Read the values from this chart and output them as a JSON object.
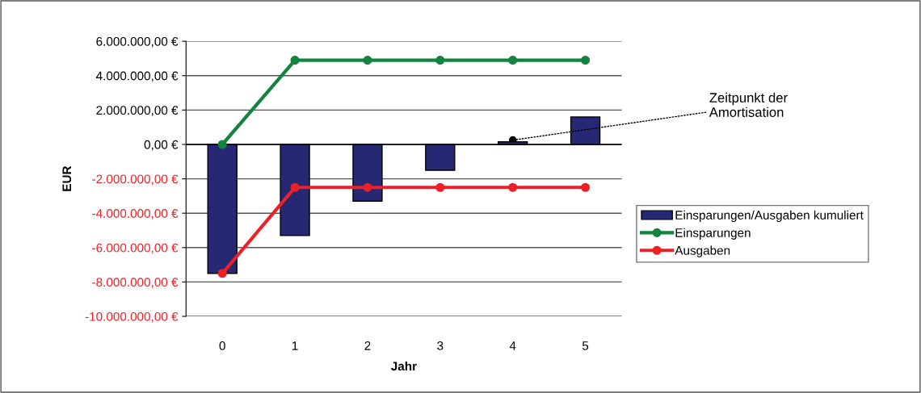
{
  "chart_data": {
    "type": "bar",
    "xlabel": "Jahr",
    "ylabel": "EUR",
    "categories": [
      "0",
      "1",
      "2",
      "3",
      "4",
      "5"
    ],
    "series": [
      {
        "name": "Einsparungen/Ausgaben kumuliert",
        "color": "#262873",
        "values": [
          -7500000,
          -5300000,
          -3300000,
          -1500000,
          150000,
          1600000
        ]
      },
      {
        "name": "Einsparungen",
        "type": "line",
        "color": "#13833f",
        "values": [
          0,
          4900000,
          4900000,
          4900000,
          4900000,
          4900000
        ]
      },
      {
        "name": "Ausgaben",
        "type": "line",
        "color": "#ec2027",
        "values": [
          -7500000,
          -2500000,
          -2500000,
          -2500000,
          -2500000,
          -2500000
        ]
      }
    ],
    "ylim": [
      -10000000,
      6000000
    ],
    "yticks": [
      {
        "value": -10000000,
        "label": "-10.000.000,00 €"
      },
      {
        "value": -8000000,
        "label": "-8.000.000,00 €"
      },
      {
        "value": -6000000,
        "label": "-6.000.000,00 €"
      },
      {
        "value": -4000000,
        "label": "-4.000.000,00 €"
      },
      {
        "value": -2000000,
        "label": "-2.000.000,00 €"
      },
      {
        "value": 0,
        "label": "0,00 €"
      },
      {
        "value": 2000000,
        "label": "2.000.000,00 €"
      },
      {
        "value": 4000000,
        "label": "4.000.000,00 €"
      },
      {
        "value": 6000000,
        "label": "6.000.000,00 €"
      }
    ],
    "annotations": [
      {
        "text": "Zeitpunkt der\nAmortisation",
        "x": "4",
        "y": 250000
      }
    ],
    "grid": "y",
    "legend": "right",
    "marker": "circle",
    "line_style": "solid"
  }
}
